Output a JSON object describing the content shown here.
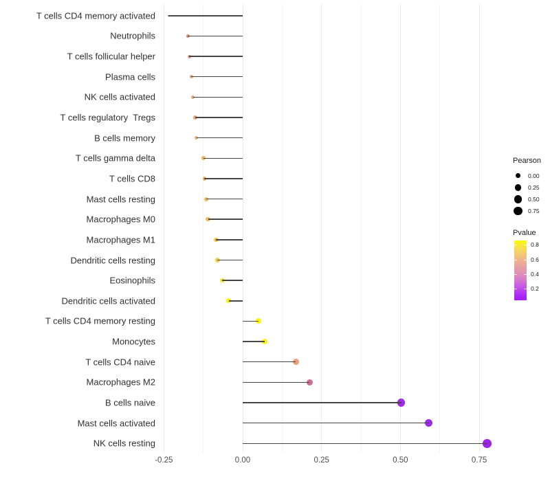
{
  "figure": {
    "background": "#ffffff"
  },
  "chart_data": {
    "type": "lollipop",
    "orientation": "horizontal",
    "title": "",
    "xlabel": "",
    "ylabel": "",
    "grid": "vertical-only",
    "legend_position": "right",
    "categories": [
      "T cells CD4 memory activated",
      "Neutrophils",
      "T cells follicular helper",
      "Plasma cells",
      "NK cells activated",
      "T cells regulatory  Tregs",
      "B cells memory",
      "T cells gamma delta",
      "T cells CD8",
      "Mast cells resting",
      "Macrophages M0",
      "Macrophages M1",
      "Dendritic cells resting",
      "Eosinophils",
      "Dendritic cells activated",
      "T cells CD4 memory resting",
      "Monocytes",
      "T cells CD4 naive",
      "Macrophages M2",
      "B cells naive",
      "Mast cells activated",
      "NK cells resting"
    ],
    "series": [
      {
        "name": "Pearson",
        "values": [
          -0.235,
          -0.174,
          -0.169,
          -0.163,
          -0.158,
          -0.15,
          -0.147,
          -0.124,
          -0.121,
          -0.115,
          -0.11,
          -0.084,
          -0.08,
          -0.065,
          -0.044,
          0.051,
          0.069,
          0.168,
          0.212,
          0.503,
          0.59,
          0.775
        ]
      }
    ],
    "point_colors": [
      "#d064ab",
      "#e08b76",
      "#e3967c",
      "#e59e80",
      "#e6a381",
      "#e9a97b",
      "#eaad76",
      "#edb463",
      "#eeb660",
      "#efb95d",
      "#f0bd59",
      "#f2c94f",
      "#f3cf49",
      "#f4e22b",
      "#fbf306",
      "#fdf405",
      "#f9f30e",
      "#e89e78",
      "#cf6d92",
      "#9d2ce6",
      "#9c2be7",
      "#9e24e8"
    ],
    "stem_color": "#454545",
    "x_axis": {
      "range": [
        -0.2675,
        0.8445
      ],
      "ticks": [
        {
          "label": "-0.25",
          "value": -0.25
        },
        {
          "label": "0.00",
          "value": 0.0
        },
        {
          "label": "0.25",
          "value": 0.25
        },
        {
          "label": "0.50",
          "value": 0.5
        },
        {
          "label": "0.75",
          "value": 0.75
        }
      ],
      "gridlines_major": [
        -0.25,
        0.0,
        0.25,
        0.5,
        0.75
      ],
      "gridlines_minor": [
        -0.125,
        0.125,
        0.375,
        0.625
      ]
    },
    "legends": {
      "size": {
        "title": "Pearson",
        "dot_color": "#000000",
        "entries": [
          {
            "label": "0.00",
            "value": 0.0
          },
          {
            "label": "0.25",
            "value": 0.25
          },
          {
            "label": "0.50",
            "value": 0.5
          },
          {
            "label": "0.75",
            "value": 0.75
          }
        ]
      },
      "color": {
        "title": "Pvalue",
        "range_top": 0.86,
        "range_bottom": 0.04,
        "ticks": [
          {
            "label": "0.8",
            "value": 0.8
          },
          {
            "label": "0.6",
            "value": 0.6
          },
          {
            "label": "0.4",
            "value": 0.4
          },
          {
            "label": "0.2",
            "value": 0.2
          }
        ],
        "gradient": [
          {
            "pos": 0.0,
            "color": "#fdfa02"
          },
          {
            "pos": 0.15,
            "color": "#f6da5e"
          },
          {
            "pos": 0.32,
            "color": "#eeb68b"
          },
          {
            "pos": 0.48,
            "color": "#e69aa9"
          },
          {
            "pos": 0.62,
            "color": "#da83c6"
          },
          {
            "pos": 0.76,
            "color": "#c75ce5"
          },
          {
            "pos": 0.9,
            "color": "#ad2ef3"
          },
          {
            "pos": 1.0,
            "color": "#a01ef5"
          }
        ]
      }
    }
  }
}
